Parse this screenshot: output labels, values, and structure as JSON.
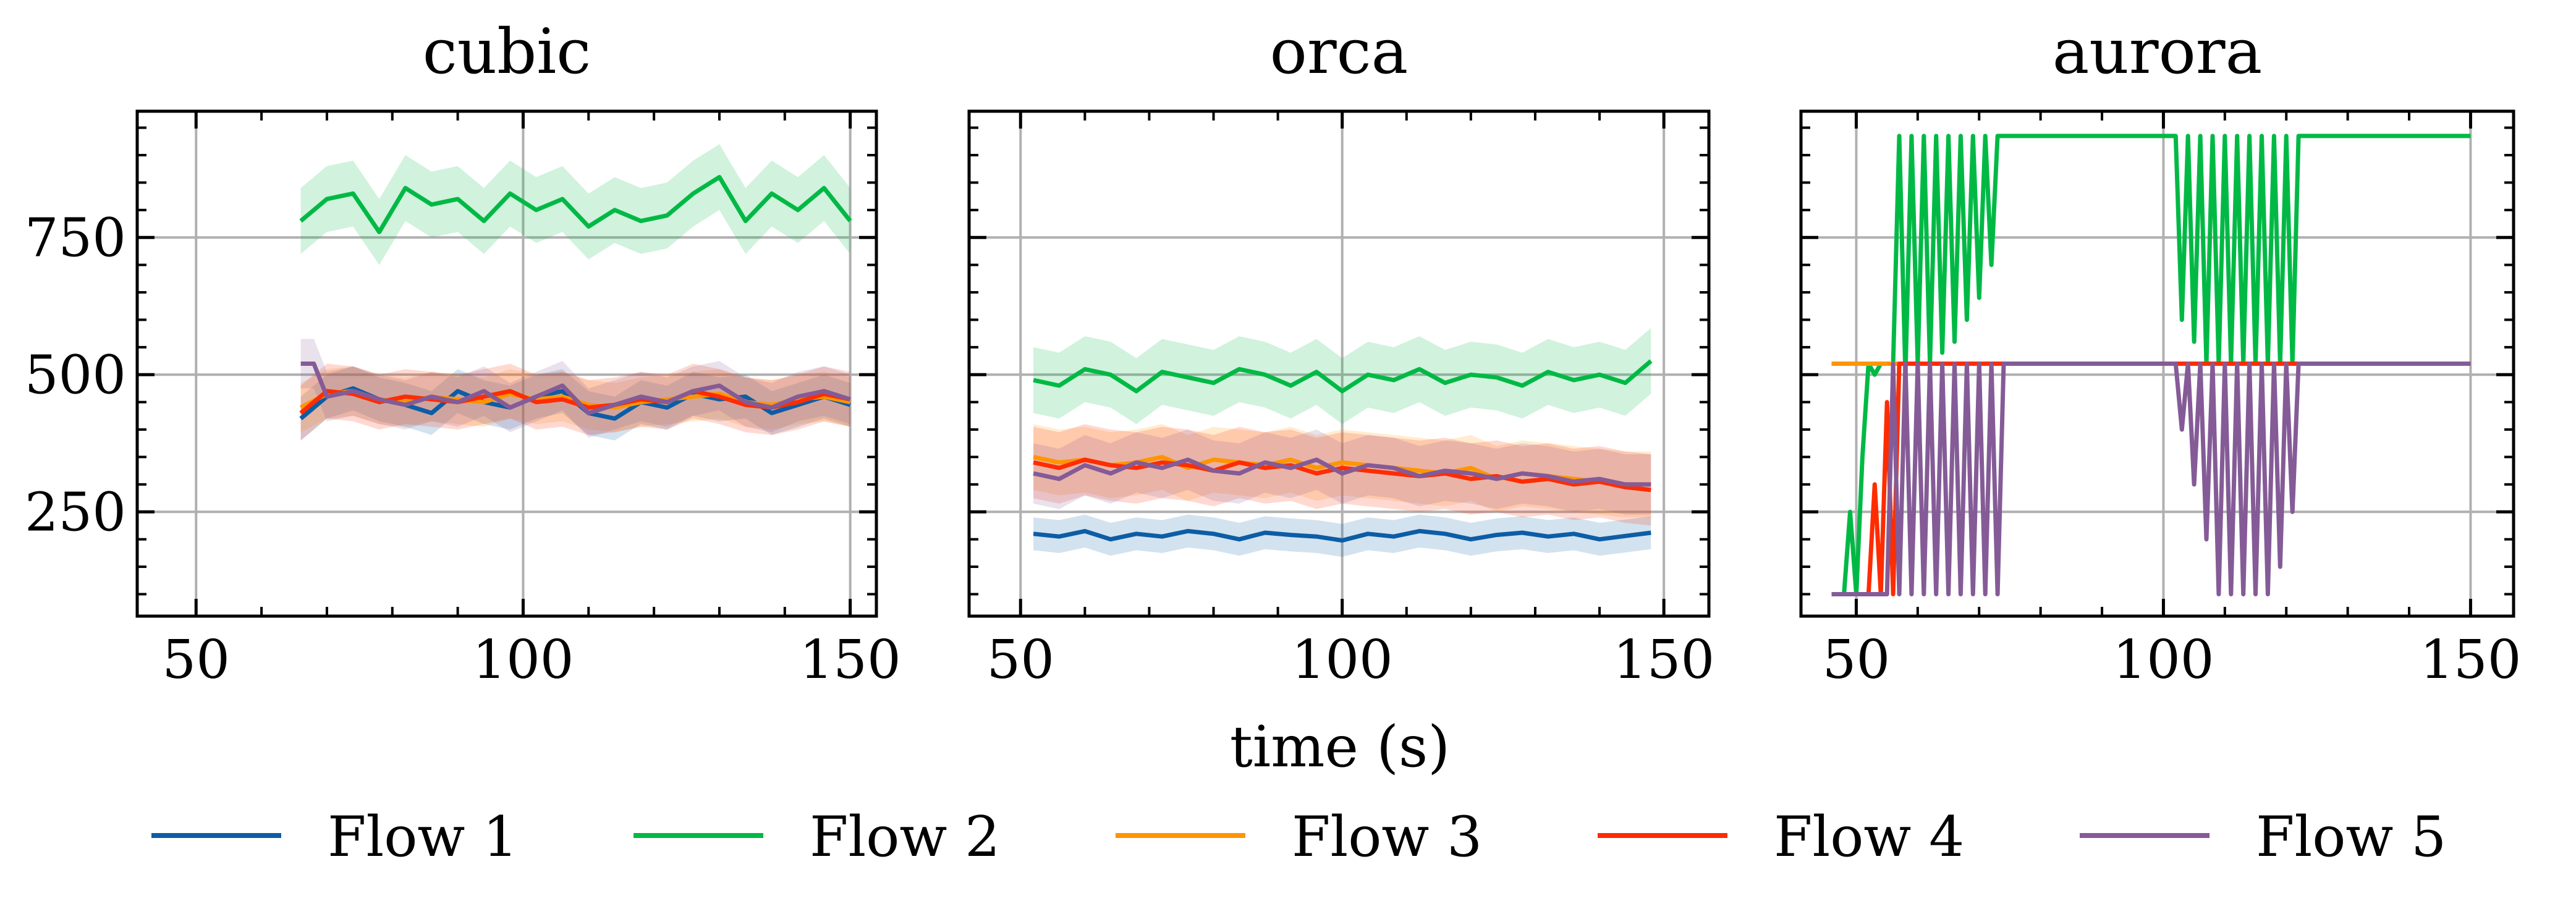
{
  "figure": {
    "xlabel": "time (s)"
  },
  "colors": {
    "Flow 1": "#0C5DA5",
    "Flow 2": "#00B945",
    "Flow 3": "#FF9500",
    "Flow 4": "#FF2C00",
    "Flow 5": "#845B97"
  },
  "legend": {
    "position": "bottom-center",
    "entries": [
      "Flow 1",
      "Flow 2",
      "Flow 3",
      "Flow 4",
      "Flow 5"
    ]
  },
  "chart_data": [
    {
      "type": "line",
      "title": "cubic",
      "xlabel": "",
      "ylabel": "",
      "xlim": [
        41,
        154
      ],
      "ylim": [
        60,
        980
      ],
      "xticks": [
        50,
        100,
        150
      ],
      "yticks": [
        250,
        500,
        750
      ],
      "grid": true,
      "series": [
        {
          "name": "Flow 1",
          "x": [
            66,
            70,
            74,
            78,
            82,
            86,
            90,
            94,
            98,
            102,
            106,
            110,
            114,
            118,
            122,
            126,
            130,
            134,
            138,
            142,
            146,
            150
          ],
          "y": [
            420,
            460,
            475,
            455,
            445,
            430,
            470,
            450,
            440,
            460,
            470,
            430,
            420,
            450,
            440,
            465,
            455,
            460,
            430,
            445,
            460,
            445
          ],
          "band": 40
        },
        {
          "name": "Flow 2",
          "x": [
            66,
            70,
            74,
            78,
            82,
            86,
            90,
            94,
            98,
            102,
            106,
            110,
            114,
            118,
            122,
            126,
            130,
            134,
            138,
            142,
            146,
            150
          ],
          "y": [
            780,
            820,
            830,
            760,
            840,
            810,
            820,
            780,
            830,
            800,
            820,
            770,
            800,
            780,
            790,
            830,
            860,
            780,
            830,
            800,
            840,
            780
          ],
          "band": 60
        },
        {
          "name": "Flow 3",
          "x": [
            66,
            70,
            74,
            78,
            82,
            86,
            90,
            94,
            98,
            102,
            106,
            110,
            114,
            118,
            122,
            126,
            130,
            134,
            138,
            142,
            146,
            150
          ],
          "y": [
            440,
            465,
            470,
            455,
            450,
            460,
            455,
            450,
            465,
            455,
            460,
            445,
            440,
            450,
            455,
            460,
            465,
            450,
            445,
            455,
            460,
            450
          ],
          "band": 45
        },
        {
          "name": "Flow 4",
          "x": [
            66,
            70,
            74,
            78,
            82,
            86,
            90,
            94,
            98,
            102,
            106,
            110,
            114,
            118,
            122,
            126,
            130,
            134,
            138,
            142,
            146,
            150
          ],
          "y": [
            430,
            470,
            465,
            450,
            460,
            455,
            450,
            460,
            470,
            450,
            455,
            440,
            445,
            455,
            450,
            470,
            460,
            445,
            440,
            450,
            465,
            455
          ],
          "band": 50
        },
        {
          "name": "Flow 5",
          "x": [
            66,
            68,
            70,
            74,
            78,
            82,
            86,
            90,
            94,
            98,
            102,
            106,
            110,
            114,
            118,
            122,
            126,
            130,
            134,
            138,
            142,
            146,
            150
          ],
          "y": [
            520,
            520,
            460,
            470,
            455,
            445,
            460,
            450,
            470,
            440,
            460,
            480,
            430,
            445,
            460,
            450,
            470,
            480,
            450,
            440,
            460,
            470,
            455
          ],
          "band": 45
        }
      ]
    },
    {
      "type": "line",
      "title": "orca",
      "xlabel": "",
      "ylabel": "",
      "xlim": [
        42,
        157
      ],
      "ylim": [
        60,
        980
      ],
      "xticks": [
        50,
        100,
        150
      ],
      "yticks": [
        250,
        500,
        750
      ],
      "grid": true,
      "series": [
        {
          "name": "Flow 1",
          "x": [
            52,
            56,
            60,
            64,
            68,
            72,
            76,
            80,
            84,
            88,
            92,
            96,
            100,
            104,
            108,
            112,
            116,
            120,
            124,
            128,
            132,
            136,
            140,
            144,
            148
          ],
          "y": [
            210,
            205,
            215,
            200,
            210,
            205,
            215,
            210,
            200,
            212,
            208,
            205,
            198,
            210,
            205,
            215,
            210,
            200,
            208,
            212,
            205,
            210,
            200,
            206,
            212
          ],
          "band": 30
        },
        {
          "name": "Flow 2",
          "x": [
            52,
            56,
            60,
            64,
            68,
            72,
            76,
            80,
            84,
            88,
            92,
            96,
            100,
            104,
            108,
            112,
            116,
            120,
            124,
            128,
            132,
            136,
            140,
            144,
            148
          ],
          "y": [
            490,
            480,
            510,
            500,
            470,
            505,
            495,
            485,
            510,
            500,
            480,
            505,
            470,
            500,
            490,
            510,
            485,
            500,
            495,
            480,
            505,
            490,
            500,
            485,
            525
          ],
          "band": 60
        },
        {
          "name": "Flow 3",
          "x": [
            52,
            56,
            60,
            64,
            68,
            72,
            76,
            80,
            84,
            88,
            92,
            96,
            100,
            104,
            108,
            112,
            116,
            120,
            124,
            128,
            132,
            136,
            140,
            144,
            148
          ],
          "y": [
            350,
            340,
            345,
            335,
            340,
            350,
            330,
            345,
            340,
            335,
            345,
            330,
            340,
            335,
            330,
            325,
            320,
            330,
            310,
            320,
            315,
            310,
            305,
            300,
            300
          ],
          "band": 60
        },
        {
          "name": "Flow 4",
          "x": [
            52,
            56,
            60,
            64,
            68,
            72,
            76,
            80,
            84,
            88,
            92,
            96,
            100,
            104,
            108,
            112,
            116,
            120,
            124,
            128,
            132,
            136,
            140,
            144,
            148
          ],
          "y": [
            340,
            330,
            345,
            335,
            330,
            340,
            335,
            325,
            340,
            330,
            335,
            320,
            330,
            325,
            320,
            315,
            320,
            310,
            315,
            305,
            310,
            300,
            305,
            295,
            290
          ],
          "band": 65
        },
        {
          "name": "Flow 5",
          "x": [
            52,
            56,
            60,
            64,
            68,
            72,
            76,
            80,
            84,
            88,
            92,
            96,
            100,
            104,
            108,
            112,
            116,
            120,
            124,
            128,
            132,
            136,
            140,
            144,
            148
          ],
          "y": [
            320,
            310,
            335,
            320,
            340,
            330,
            345,
            325,
            320,
            340,
            330,
            345,
            320,
            335,
            330,
            315,
            325,
            320,
            310,
            320,
            315,
            305,
            310,
            300,
            300
          ],
          "band": 55
        }
      ]
    },
    {
      "type": "line",
      "title": "aurora",
      "xlabel": "",
      "ylabel": "",
      "xlim": [
        41,
        157
      ],
      "ylim": [
        60,
        980
      ],
      "xticks": [
        50,
        100,
        150
      ],
      "yticks": [
        250,
        500,
        750
      ],
      "grid": true,
      "series": [
        {
          "name": "Flow 1",
          "x": [
            46,
            150
          ],
          "y": [
            520,
            520
          ],
          "band": 0
        },
        {
          "name": "Flow 2",
          "x": [
            46,
            48,
            49,
            50,
            51,
            52,
            53,
            54,
            55,
            56,
            57,
            58,
            59,
            60,
            61,
            62,
            63,
            64,
            65,
            66,
            67,
            68,
            69,
            70,
            71,
            72,
            73,
            74,
            75,
            101,
            102,
            103,
            104,
            105,
            106,
            107,
            108,
            109,
            110,
            111,
            112,
            113,
            114,
            115,
            116,
            117,
            118,
            119,
            120,
            121,
            122,
            123,
            150
          ],
          "y": [
            100,
            100,
            250,
            100,
            350,
            520,
            500,
            520,
            520,
            520,
            935,
            500,
            935,
            520,
            935,
            520,
            935,
            540,
            935,
            560,
            935,
            600,
            935,
            640,
            935,
            700,
            935,
            935,
            935,
            935,
            935,
            600,
            935,
            560,
            935,
            520,
            935,
            520,
            935,
            520,
            935,
            520,
            935,
            520,
            935,
            520,
            935,
            520,
            935,
            520,
            935,
            935,
            935
          ],
          "band": 0
        },
        {
          "name": "Flow 3",
          "x": [
            46,
            150
          ],
          "y": [
            520,
            520
          ],
          "band": 0
        },
        {
          "name": "Flow 4",
          "x": [
            46,
            52,
            53,
            54,
            55,
            56,
            57,
            58,
            60,
            150
          ],
          "y": [
            100,
            100,
            300,
            100,
            450,
            100,
            520,
            520,
            520,
            520
          ],
          "band": 0
        },
        {
          "name": "Flow 5",
          "x": [
            46,
            55,
            56,
            57,
            58,
            59,
            60,
            61,
            62,
            63,
            64,
            65,
            66,
            67,
            68,
            69,
            70,
            71,
            72,
            73,
            74,
            75,
            101,
            102,
            103,
            104,
            105,
            106,
            107,
            108,
            109,
            110,
            111,
            112,
            113,
            114,
            115,
            116,
            117,
            118,
            119,
            120,
            121,
            122,
            123,
            150
          ],
          "y": [
            100,
            100,
            520,
            100,
            520,
            100,
            520,
            100,
            520,
            100,
            520,
            100,
            520,
            100,
            520,
            100,
            520,
            100,
            520,
            100,
            520,
            520,
            520,
            520,
            400,
            520,
            300,
            520,
            200,
            520,
            100,
            520,
            100,
            520,
            100,
            520,
            100,
            520,
            100,
            520,
            150,
            520,
            250,
            520,
            520,
            520
          ],
          "band": 0
        }
      ]
    }
  ]
}
